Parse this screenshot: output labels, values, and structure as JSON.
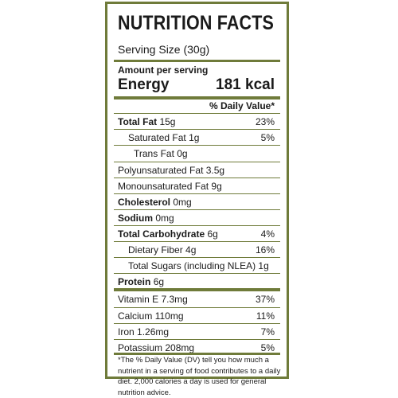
{
  "title": "NUTRITION FACTS",
  "serving_size": "Serving Size (30g)",
  "amount_per_serving": "Amount per serving",
  "energy": {
    "label": "Energy",
    "value": "181 kcal"
  },
  "daily_value_header": "% Daily Value*",
  "rows": [
    {
      "label": "Total Fat",
      "amount": "15g",
      "dv": "23%"
    },
    {
      "label": "Saturated Fat",
      "amount": "1g",
      "dv": "5%"
    },
    {
      "label": "Trans Fat",
      "amount": "0g",
      "dv": ""
    },
    {
      "label": "Polyunsaturated Fat",
      "amount": "3.5g",
      "dv": ""
    },
    {
      "label": "Monounsaturated Fat",
      "amount": "9g",
      "dv": ""
    },
    {
      "label": "Cholesterol",
      "amount": "0mg",
      "dv": ""
    },
    {
      "label": "Sodium",
      "amount": "0mg",
      "dv": ""
    },
    {
      "label": "Total Carbohydrate",
      "amount": "6g",
      "dv": "4%"
    },
    {
      "label": "Dietary Fiber",
      "amount": "4g",
      "dv": "16%"
    },
    {
      "label": "Total Sugars (including NLEA)",
      "amount": "1g",
      "dv": ""
    },
    {
      "label": "Protein",
      "amount": "6g",
      "dv": ""
    },
    {
      "label": "Vitamin E",
      "amount": "7.3mg",
      "dv": "37%"
    },
    {
      "label": "Calcium",
      "amount": "110mg",
      "dv": "11%"
    },
    {
      "label": "Iron",
      "amount": "1.26mg",
      "dv": "7%"
    },
    {
      "label": "Potassium",
      "amount": "208mg",
      "dv": "5%"
    }
  ],
  "footnote": "*The % Daily Value (DV) tell you how much a nutrient in a serving of food contributes to a daily diet. 2,000 calories a day is used for general nutrition advice.",
  "colors": {
    "border": "#6f7b3a",
    "text": "#1a1a1a"
  }
}
